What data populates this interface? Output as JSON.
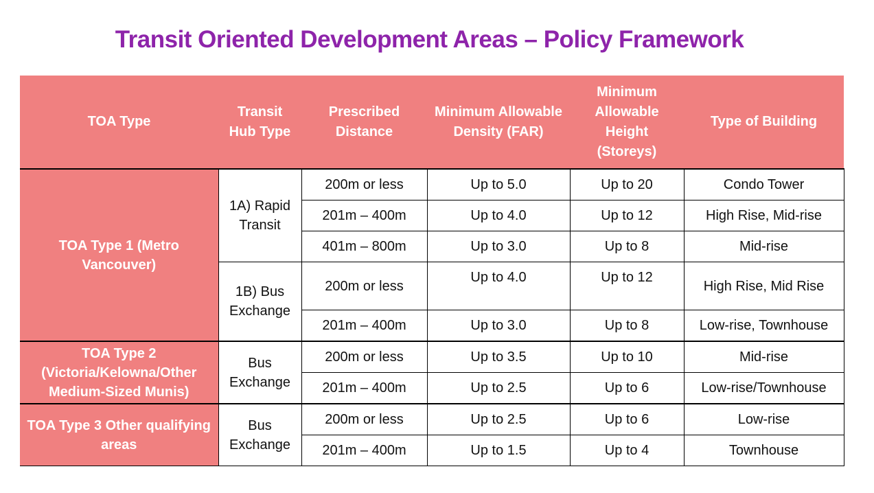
{
  "title": "Transit Oriented Development Areas – Policy Framework",
  "headers": {
    "toa_type": "TOA Type",
    "hub_type": "Transit Hub Type",
    "distance": "Prescribed Distance",
    "density": "Minimum Allowable Density (FAR)",
    "height": "Minimum Allowable Height (Storeys)",
    "building": "Type of Building"
  },
  "groups": [
    {
      "toa_type": "TOA Type 1 (Metro Vancouver)",
      "hubs": [
        {
          "hub": "1A) Rapid Transit",
          "rows": [
            {
              "distance": "200m or less",
              "density": "Up to 5.0",
              "height": "Up to 20",
              "building": "Condo Tower"
            },
            {
              "distance": "201m – 400m",
              "density": "Up to 4.0",
              "height": "Up to 12",
              "building": "High Rise, Mid-rise"
            },
            {
              "distance": "401m – 800m",
              "density": "Up to 3.0",
              "height": "Up to 8",
              "building": "Mid-rise"
            }
          ]
        },
        {
          "hub": "1B) Bus Exchange",
          "rows": [
            {
              "distance": "200m or less",
              "density": "Up to 4.0",
              "height": "Up to 12",
              "building": "High Rise, Mid Rise"
            },
            {
              "distance": "201m – 400m",
              "density": "Up to 3.0",
              "height": "Up to 8",
              "building": "Low-rise, Townhouse"
            }
          ]
        }
      ]
    },
    {
      "toa_type": "TOA Type 2 (Victoria/Kelowna/Other Medium-Sized Munis)",
      "hubs": [
        {
          "hub": "Bus Exchange",
          "rows": [
            {
              "distance": "200m or less",
              "density": "Up to 3.5",
              "height": "Up to 10",
              "building": "Mid-rise"
            },
            {
              "distance": "201m – 400m",
              "density": "Up to 2.5",
              "height": "Up to 6",
              "building": "Low-rise/Townhouse"
            }
          ]
        }
      ]
    },
    {
      "toa_type": "TOA Type 3 Other qualifying areas",
      "hubs": [
        {
          "hub": "Bus Exchange",
          "rows": [
            {
              "distance": "200m or less",
              "density": "Up to 2.5",
              "height": "Up to 6",
              "building": "Low-rise"
            },
            {
              "distance": "201m – 400m",
              "density": "Up to 1.5",
              "height": "Up to 4",
              "building": "Townhouse"
            }
          ]
        }
      ]
    }
  ]
}
